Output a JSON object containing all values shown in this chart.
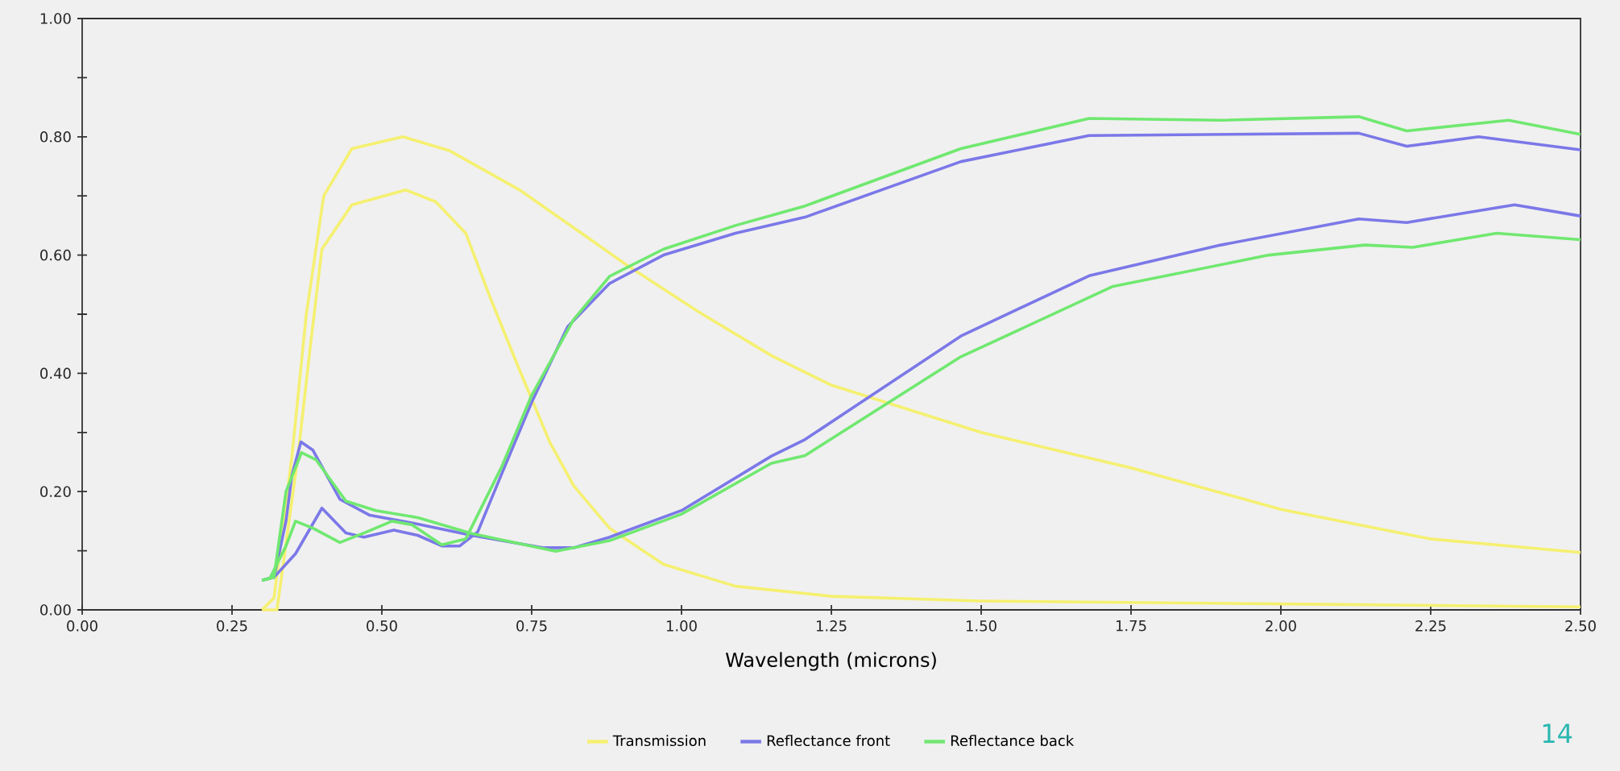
{
  "chart_data": {
    "type": "line",
    "xlabel": "Wavelength (microns)",
    "xlim": [
      0,
      2.5
    ],
    "ylim": [
      0,
      1
    ],
    "xticks": [
      {
        "value": 0,
        "label": "0.00"
      },
      {
        "value": 0.25,
        "label": "0.25"
      },
      {
        "value": 0.5,
        "label": "0.50"
      },
      {
        "value": 0.75,
        "label": "0.75"
      },
      {
        "value": 1,
        "label": "1.00"
      },
      {
        "value": 1.25,
        "label": "1.25"
      },
      {
        "value": 1.5,
        "label": "1.50"
      },
      {
        "value": 1.75,
        "label": "1.75"
      },
      {
        "value": 2,
        "label": "2.00"
      },
      {
        "value": 2.25,
        "label": "2.25"
      },
      {
        "value": 2.5,
        "label": "2.50"
      }
    ],
    "yticks": [
      {
        "value": 0,
        "label": "0.00"
      },
      {
        "value": 0.1,
        "label": null
      },
      {
        "value": 0.2,
        "label": "0.20"
      },
      {
        "value": 0.3,
        "label": null
      },
      {
        "value": 0.4,
        "label": "0.40"
      },
      {
        "value": 0.5,
        "label": null
      },
      {
        "value": 0.6,
        "label": "0.60"
      },
      {
        "value": 0.7,
        "label": null
      },
      {
        "value": 0.8,
        "label": "0.80"
      },
      {
        "value": 0.9,
        "label": null
      },
      {
        "value": 1,
        "label": "1.00"
      }
    ],
    "grid": false,
    "legend": "bottom",
    "marker": "none",
    "line_style": "solid",
    "series": [
      {
        "name": "Transmission",
        "color": "#f5f070",
        "x": [
          0.3,
          0.32,
          0.35,
          0.374,
          0.403,
          0.45,
          0.535,
          0.612,
          0.73,
          0.85,
          0.91,
          1.03,
          1.15,
          1.25,
          1.5,
          1.75,
          2.0,
          2.25,
          2.5
        ],
        "values": [
          0,
          0.02,
          0.26,
          0.5,
          0.7,
          0.78,
          0.8,
          0.777,
          0.71,
          0.625,
          0.582,
          0.503,
          0.43,
          0.38,
          0.3,
          0.24,
          0.17,
          0.12,
          0.097
        ]
      },
      {
        "color": "#f5f070",
        "x": [
          0.3,
          0.325,
          0.36,
          0.38,
          0.4,
          0.45,
          0.54,
          0.59,
          0.64,
          0.68,
          0.73,
          0.78,
          0.82,
          0.88,
          0.97,
          1.09,
          1.25,
          1.5,
          2.0,
          2.5
        ],
        "values": [
          0,
          0,
          0.26,
          0.44,
          0.61,
          0.685,
          0.71,
          0.69,
          0.637,
          0.53,
          0.405,
          0.284,
          0.21,
          0.138,
          0.077,
          0.04,
          0.023,
          0.015,
          0.01,
          0.005
        ]
      },
      {
        "name": "Reflectance front",
        "color": "#7b78e8",
        "x": [
          0.3,
          0.32,
          0.356,
          0.4,
          0.44,
          0.47,
          0.52,
          0.56,
          0.6,
          0.63,
          0.66,
          0.7,
          0.75,
          0.81,
          0.88,
          0.97,
          1.09,
          1.206,
          1.466,
          1.68,
          2.13,
          2.21,
          2.33,
          2.5
        ],
        "values": [
          0.05,
          0.055,
          0.095,
          0.172,
          0.13,
          0.123,
          0.135,
          0.126,
          0.108,
          0.108,
          0.132,
          0.23,
          0.351,
          0.479,
          0.552,
          0.6,
          0.637,
          0.664,
          0.758,
          0.802,
          0.806,
          0.784,
          0.8,
          0.778
        ]
      },
      {
        "color": "#7b78e8",
        "x": [
          0.3,
          0.32,
          0.34,
          0.35,
          0.365,
          0.385,
          0.43,
          0.48,
          0.55,
          0.65,
          0.77,
          0.82,
          0.88,
          1.0,
          1.15,
          1.206,
          1.466,
          1.68,
          1.9,
          2.13,
          2.21,
          2.39,
          2.5
        ],
        "values": [
          0.05,
          0.055,
          0.15,
          0.228,
          0.284,
          0.27,
          0.187,
          0.16,
          0.147,
          0.126,
          0.105,
          0.105,
          0.123,
          0.168,
          0.26,
          0.288,
          0.463,
          0.565,
          0.617,
          0.661,
          0.655,
          0.685,
          0.666
        ]
      },
      {
        "name": "Reflectance back",
        "color": "#70e870",
        "x": [
          0.3,
          0.313,
          0.34,
          0.356,
          0.385,
          0.43,
          0.475,
          0.517,
          0.55,
          0.6,
          0.64,
          0.7,
          0.75,
          0.82,
          0.88,
          0.97,
          1.09,
          1.206,
          1.466,
          1.68,
          1.9,
          2.13,
          2.21,
          2.38,
          2.5
        ],
        "values": [
          0.05,
          0.053,
          0.108,
          0.15,
          0.138,
          0.114,
          0.132,
          0.15,
          0.144,
          0.11,
          0.12,
          0.242,
          0.363,
          0.491,
          0.564,
          0.61,
          0.65,
          0.683,
          0.78,
          0.831,
          0.828,
          0.834,
          0.81,
          0.828,
          0.804
        ]
      },
      {
        "color": "#70e870",
        "x": [
          0.3,
          0.32,
          0.34,
          0.366,
          0.39,
          0.44,
          0.49,
          0.56,
          0.65,
          0.79,
          0.88,
          1.0,
          1.15,
          1.206,
          1.466,
          1.72,
          1.98,
          2.14,
          2.22,
          2.36,
          2.5
        ],
        "values": [
          0.05,
          0.055,
          0.2,
          0.266,
          0.254,
          0.184,
          0.168,
          0.156,
          0.129,
          0.099,
          0.117,
          0.162,
          0.248,
          0.261,
          0.428,
          0.547,
          0.6,
          0.617,
          0.613,
          0.637,
          0.626
        ]
      }
    ],
    "annotations": [
      "14"
    ]
  }
}
